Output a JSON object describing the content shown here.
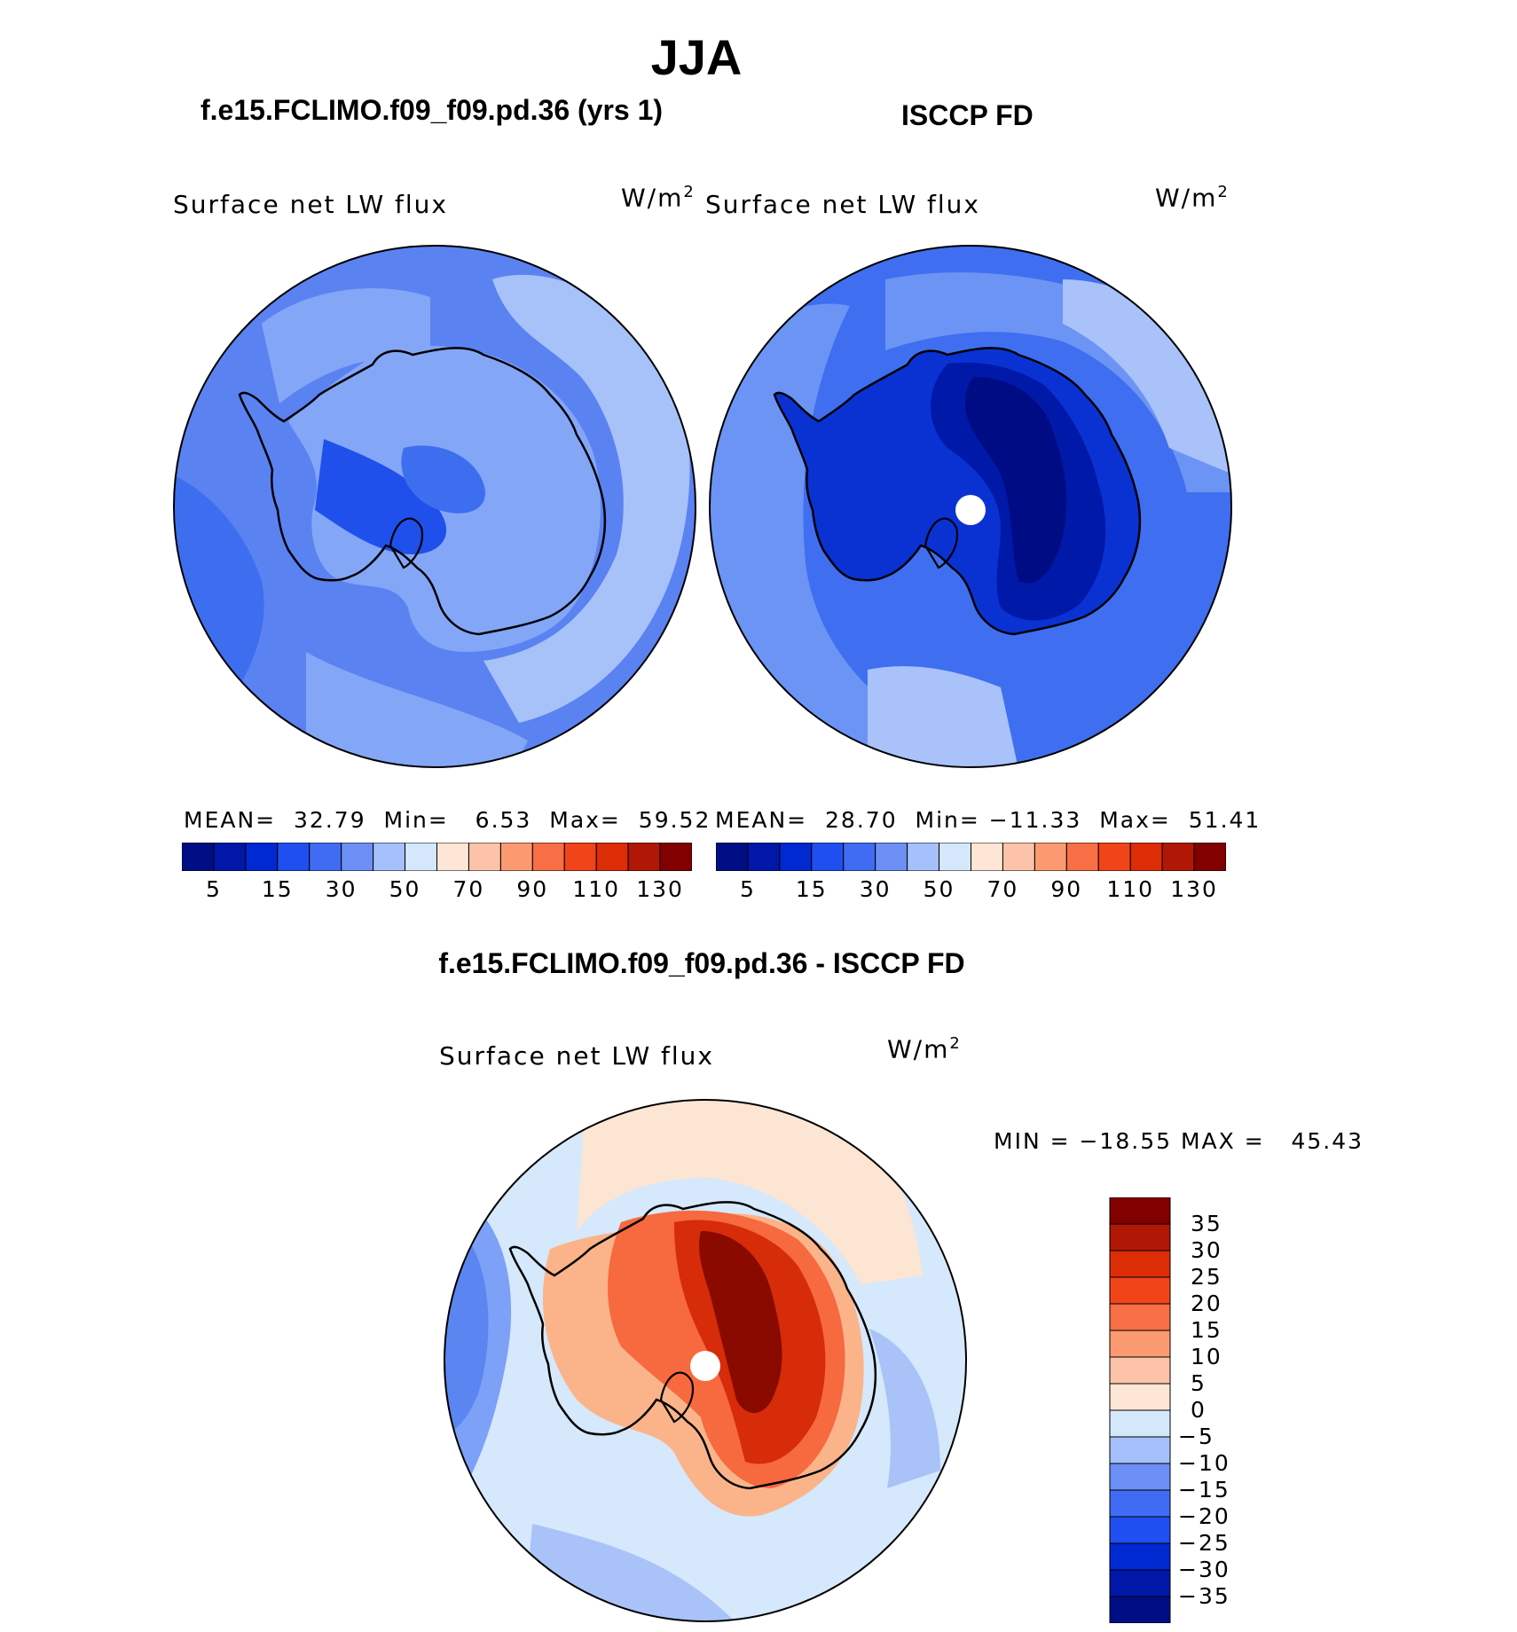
{
  "figure": {
    "season": "JJA",
    "case_title": "f.e15.FCLIMO.f09_f09.pd.36 (yrs 1)",
    "obs_title": "ISCCP FD",
    "diff_title": "f.e15.FCLIMO.f09_f09.pd.36 - ISCCP FD"
  },
  "panels": {
    "model": {
      "variable": "Surface net LW flux",
      "units": "W/m",
      "units_sup": "2",
      "mean_label": "MEAN=",
      "mean_value": "32.79",
      "min_label": "Min=",
      "min_value": "6.53",
      "max_label": "Max=",
      "max_value": "59.52"
    },
    "obs": {
      "variable": "Surface net LW flux",
      "units": "W/m",
      "units_sup": "2",
      "mean_label": "MEAN=",
      "mean_value": "28.70",
      "min_label": "Min=",
      "min_value": "−11.33",
      "max_label": "Max=",
      "max_value": "51.41"
    },
    "diff": {
      "variable": "Surface net LW flux",
      "units": "W/m",
      "units_sup": "2",
      "minmax_text": "MIN = −18.55 MAX =   45.43"
    }
  },
  "colorbar_abs": {
    "colors": [
      "#000e85",
      "#0017a8",
      "#0029d1",
      "#1f4ff0",
      "#3f6cf2",
      "#6b8ff5",
      "#a5c0fa",
      "#d5e8fb",
      "#fde6d6",
      "#fcc3a8",
      "#fb9a70",
      "#f86e45",
      "#f14519",
      "#dc2d07",
      "#b01805",
      "#820000"
    ],
    "tick_labels": [
      "5",
      "15",
      "30",
      "50",
      "70",
      "90",
      "110",
      "130"
    ]
  },
  "colorbar_diff": {
    "colors": [
      "#000e85",
      "#0017a8",
      "#0029d1",
      "#1f4ff0",
      "#3f6cf2",
      "#6b8ff5",
      "#a5c0fa",
      "#d5e8fb",
      "#fde6d6",
      "#fcc3a8",
      "#fb9a70",
      "#f86e45",
      "#f14519",
      "#dc2d07",
      "#b01805",
      "#820000"
    ],
    "tick_labels": [
      "35",
      "30",
      "25",
      "20",
      "15",
      "10",
      "5",
      "0",
      "−5",
      "−10",
      "−15",
      "−20",
      "−25",
      "−30",
      "−35"
    ]
  },
  "map_palette": {
    "model_ocean": "#5b82f1",
    "model_light": "#84a6f7",
    "model_lighter": "#a7c1f9",
    "model_dark": "#3e6ef0",
    "model_darker": "#2050eb",
    "obs_ocean": "#3f6ff0",
    "obs_light": "#6c94f5",
    "obs_lighter": "#a9c2fa",
    "obs_dark": "#0a32d3",
    "obs_darker": "#0019a9",
    "obs_darkest": "#000c84",
    "diff_bg": "#d6e8fb",
    "diff_light": "#fde5d3",
    "diff_mid": "#fbb48a",
    "diff_red": "#f7693e",
    "diff_dark": "#d62c0a",
    "diff_darker": "#8a0a00",
    "diff_blue": "#a9c3f9",
    "diff_blue2": "#7da1f6",
    "diff_blue3": "#5b85f1"
  }
}
